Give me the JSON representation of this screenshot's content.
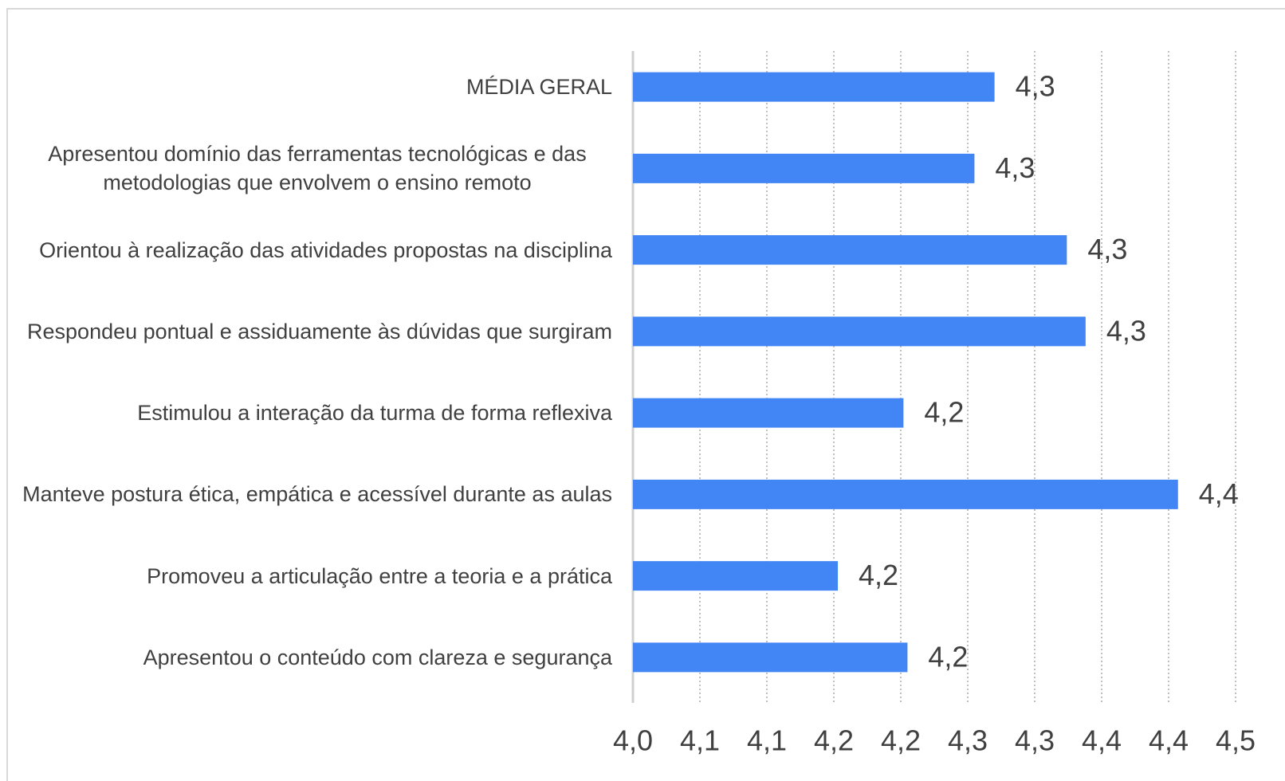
{
  "chart_data": {
    "type": "bar",
    "orientation": "horizontal",
    "categories": [
      "MÉDIA GERAL",
      "Apresentou domínio das ferramentas tecnológicas e das metodologias que envolvem o ensino remoto",
      "Orientou à realização das atividades propostas na disciplina",
      "Respondeu pontual e assiduamente às dúvidas que surgiram",
      "Estimulou a interação da turma de forma reflexiva",
      "Manteve postura ética, empática e acessível durante as aulas",
      "Promoveu a articulação entre a teoria e a prática",
      "Apresentou o conteúdo com clareza e segurança"
    ],
    "values": [
      4.27,
      4.255,
      4.324,
      4.338,
      4.202,
      4.407,
      4.153,
      4.205
    ],
    "value_labels": [
      "4,3",
      "4,3",
      "4,3",
      "4,3",
      "4,2",
      "4,4",
      "4,2",
      "4,2"
    ],
    "color": "#4285f4",
    "xlim": [
      4.0,
      4.45
    ],
    "xticks": [
      {
        "value": 4.0,
        "label": "4,0"
      },
      {
        "value": 4.05,
        "label": "4,1"
      },
      {
        "value": 4.1,
        "label": "4,1"
      },
      {
        "value": 4.15,
        "label": "4,2"
      },
      {
        "value": 4.2,
        "label": "4,2"
      },
      {
        "value": 4.25,
        "label": "4,3"
      },
      {
        "value": 4.3,
        "label": "4,3"
      },
      {
        "value": 4.35,
        "label": "4,4"
      },
      {
        "value": 4.4,
        "label": "4,4"
      },
      {
        "value": 4.45,
        "label": "4,5"
      }
    ],
    "grid": true
  }
}
